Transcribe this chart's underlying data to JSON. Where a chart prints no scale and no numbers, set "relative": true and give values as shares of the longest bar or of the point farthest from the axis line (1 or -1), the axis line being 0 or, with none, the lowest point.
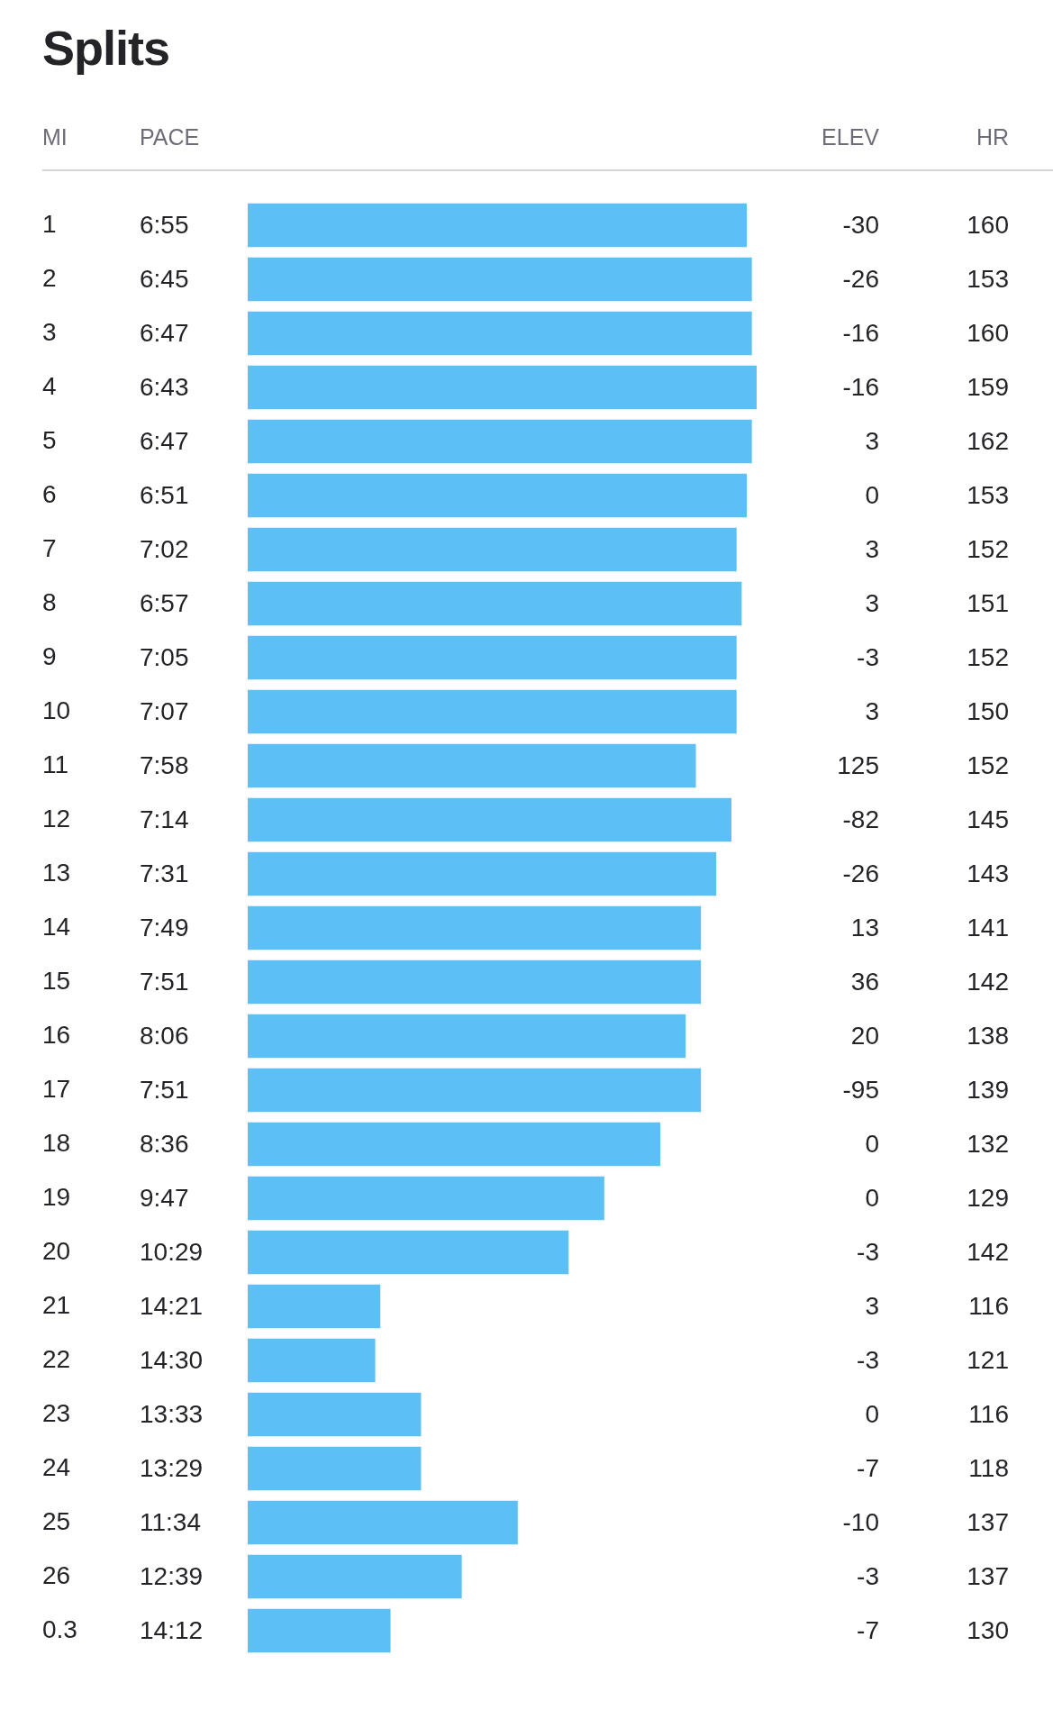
{
  "chart_data": [
    {
      "type": "bar",
      "title": "Splits",
      "ylabel": "MI",
      "orientation": "horizontal",
      "relative": true,
      "color": "#5cc0f6",
      "categories": [
        "1",
        "2",
        "3",
        "4",
        "5",
        "6",
        "7",
        "8",
        "9",
        "10",
        "11",
        "12",
        "13",
        "14",
        "15",
        "16",
        "17",
        "18",
        "19",
        "20",
        "21",
        "22",
        "23",
        "24",
        "25",
        "26",
        "0.3"
      ],
      "values": [
        0.98,
        0.99,
        0.99,
        1,
        0.99,
        0.98,
        0.96,
        0.97,
        0.96,
        0.96,
        0.88,
        0.95,
        0.92,
        0.89,
        0.89,
        0.86,
        0.89,
        0.81,
        0.7,
        0.63,
        0.26,
        0.25,
        0.34,
        0.34,
        0.53,
        0.42,
        0.28
      ]
    },
    {
      "type": "other",
      "title": "PACE",
      "categories": [
        "6:55",
        "6:45",
        "6:47",
        "6:43",
        "6:47",
        "6:51",
        "7:02",
        "6:57",
        "7:05",
        "7:07",
        "7:58",
        "7:14",
        "7:31",
        "7:49",
        "7:51",
        "8:06",
        "7:51",
        "8:36",
        "9:47",
        "10:29",
        "14:21",
        "14:30",
        "13:33",
        "13:29",
        "11:34",
        "12:39",
        "14:12"
      ]
    },
    {
      "type": "other",
      "title": "ELEV",
      "data_labels": true,
      "values": [
        -30,
        -26,
        -16,
        -16,
        3,
        0,
        3,
        3,
        -3,
        3,
        125,
        -82,
        -26,
        13,
        36,
        20,
        -95,
        0,
        0,
        -3,
        3,
        -3,
        0,
        -7,
        -10,
        -3,
        -7
      ]
    },
    {
      "type": "other",
      "title": "HR",
      "data_labels": true,
      "values": [
        160,
        153,
        160,
        159,
        162,
        153,
        152,
        151,
        152,
        150,
        152,
        145,
        143,
        141,
        142,
        138,
        139,
        132,
        129,
        142,
        116,
        121,
        116,
        118,
        137,
        137,
        130
      ]
    }
  ]
}
